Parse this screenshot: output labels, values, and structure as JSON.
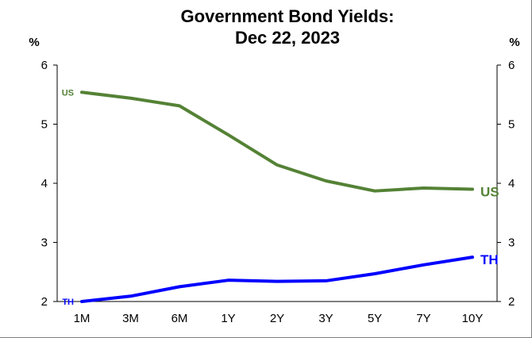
{
  "chart_data": {
    "type": "line",
    "title_lines": [
      "Government Bond Yields:",
      "Dec 22, 2023"
    ],
    "ylabel_left": "%",
    "ylabel_right": "%",
    "ylim": [
      2,
      6
    ],
    "yticks": [
      2,
      3,
      4,
      5,
      6
    ],
    "categories": [
      "1M",
      "3M",
      "6M",
      "1Y",
      "2Y",
      "3Y",
      "5Y",
      "7Y",
      "10Y"
    ],
    "grid": false,
    "legend": "none",
    "series": [
      {
        "name": "US",
        "color": "#548235",
        "values": [
          5.54,
          5.44,
          5.31,
          4.82,
          4.31,
          4.04,
          3.87,
          3.92,
          3.9
        ]
      },
      {
        "name": "TH",
        "color": "#0000ff",
        "values": [
          2.0,
          2.09,
          2.25,
          2.36,
          2.34,
          2.35,
          2.47,
          2.62,
          2.75
        ]
      }
    ]
  }
}
